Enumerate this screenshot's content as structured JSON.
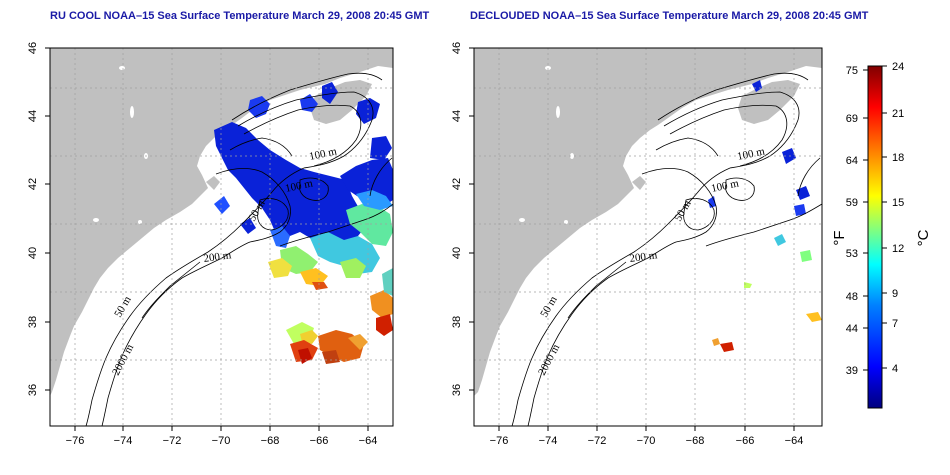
{
  "panels": [
    {
      "id": "left",
      "title": "RU COOL NOAA–15 Sea Surface Temperature March 29, 2008 20:45 GMT",
      "contour_labels": [
        "100 m",
        "100 m",
        "50 m",
        "200 m",
        "50 m",
        "2000 m"
      ]
    },
    {
      "id": "right",
      "title": "DECLOUDED NOAA–15 Sea Surface Temperature March 29, 2008 20:45 GMT",
      "contour_labels": [
        "100 m",
        "100 m",
        "50 m",
        "200 m",
        "50 m",
        "2000 m"
      ]
    }
  ],
  "axes": {
    "x_ticks": [
      "−76",
      "−74",
      "−72",
      "−70",
      "−68",
      "−66",
      "−64"
    ],
    "y_ticks": [
      "36",
      "38",
      "40",
      "42",
      "44",
      "46"
    ],
    "xlim": [
      -77,
      -63
    ],
    "ylim": [
      35,
      46
    ],
    "grid": "dotted"
  },
  "colorbar": {
    "fahrenheit_ticks": [
      "75",
      "69",
      "64",
      "59",
      "53",
      "48",
      "44",
      "39"
    ],
    "celsius_ticks": [
      "24",
      "21",
      "18",
      "15",
      "12",
      "9",
      "7",
      "4"
    ],
    "fahrenheit_unit": "°F",
    "celsius_unit": "°C",
    "colors": [
      "#00007f",
      "#0000ff",
      "#0080ff",
      "#00ffff",
      "#80ff80",
      "#ffff00",
      "#ff8000",
      "#ff0000",
      "#800000"
    ]
  },
  "colors": {
    "land": "#c0c0c0",
    "title": "#1a1aa6",
    "grid": "#a0a0a0"
  }
}
